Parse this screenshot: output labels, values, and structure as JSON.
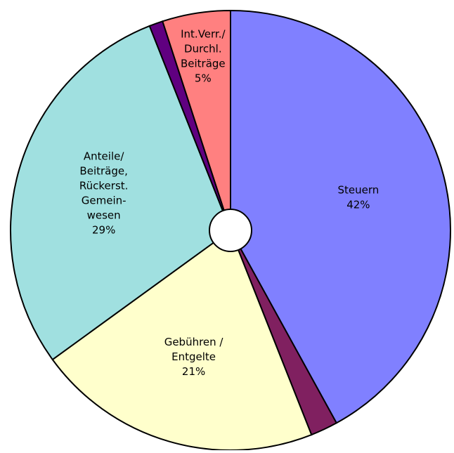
{
  "chart_data": {
    "type": "pie",
    "categories": [
      [
        "Steuern"
      ],
      null,
      [
        "Gebühren /",
        "Entgelte"
      ],
      [
        "Anteile/",
        "Beiträge,",
        "Rückerst.",
        "Gemein-",
        "wesen"
      ],
      null,
      [
        "Int.Verr./",
        "Durchl.",
        "Beiträge"
      ]
    ],
    "values": [
      42,
      2,
      21,
      29,
      1,
      5
    ],
    "value_labels": [
      "42%",
      null,
      "21%",
      "29%",
      null,
      "5%"
    ],
    "colors": [
      "#8080ff",
      "#802060",
      "#ffffcc",
      "#a0e0e0",
      "#600080",
      "#ff8080"
    ]
  }
}
